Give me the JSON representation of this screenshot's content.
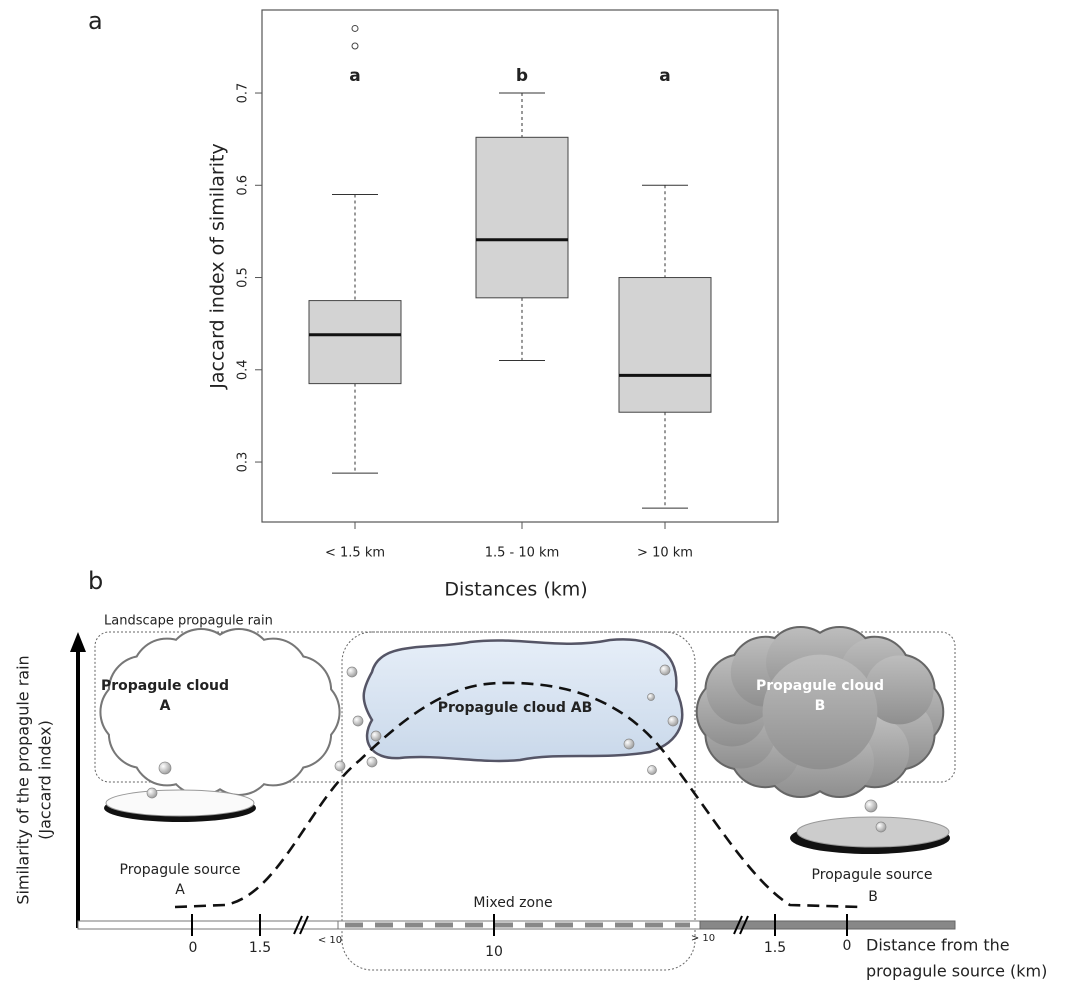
{
  "chart_data": {
    "type": "box",
    "panel_label": "a",
    "ylabel": "Jaccard index of similarity",
    "xlabel": "Distances (km)",
    "categories": [
      "< 1.5 km",
      "1.5 - 10 km",
      "> 10 km"
    ],
    "boxes": [
      {
        "low": 0.288,
        "q1": 0.385,
        "median": 0.438,
        "q3": 0.475,
        "high": 0.59,
        "outliers": [
          0.751,
          0.77
        ]
      },
      {
        "low": 0.41,
        "q1": 0.478,
        "median": 0.541,
        "q3": 0.652,
        "high": 0.7,
        "outliers": []
      },
      {
        "low": 0.25,
        "q1": 0.354,
        "median": 0.394,
        "q3": 0.5,
        "high": 0.6,
        "outliers": []
      }
    ],
    "group_letters": [
      "a",
      "b",
      "a"
    ],
    "color": "#d3d3d3",
    "ylim": [
      0.235,
      0.79
    ],
    "yticks": [
      0.3,
      0.4,
      0.5,
      0.6,
      0.7
    ]
  },
  "diagram": {
    "panel_label": "b",
    "landscape_label": "Landscape propagule rain",
    "cloud_a": [
      "Propagule cloud",
      "A"
    ],
    "cloud_ab": "Propagule cloud AB",
    "cloud_b": [
      "Propagule cloud",
      "B"
    ],
    "source_a": [
      "Propagule source",
      "A"
    ],
    "source_b": [
      "Propagule source",
      "B"
    ],
    "mixed_zone": "Mixed zone",
    "axis_ticks": [
      "0",
      "1.5",
      "< 10",
      "10",
      "> 10",
      "1.5",
      "0"
    ],
    "y_axis_label": [
      "Similarity of the propagule rain",
      "(Jaccard index)"
    ],
    "x_axis_label": [
      "Distance from the",
      "propagule source (km)"
    ]
  }
}
